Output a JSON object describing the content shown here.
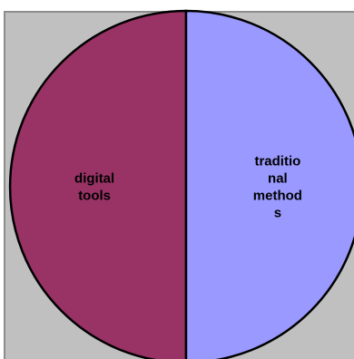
{
  "chart_data": {
    "type": "pie",
    "categories": [
      "digital tools",
      "traditional methods"
    ],
    "values": [
      50,
      50
    ],
    "slices": [
      {
        "label": "digital tools",
        "label_lines": [
          "digital",
          "tools"
        ],
        "value": 50,
        "color": "#993366"
      },
      {
        "label": "traditional methods",
        "label_lines": [
          "traditio",
          "nal",
          "method",
          "s"
        ],
        "value": 50,
        "color": "#9999ff"
      }
    ],
    "title": "",
    "legend": "none",
    "plot_background": "#c0c0c0",
    "outline_color": "#000000"
  }
}
